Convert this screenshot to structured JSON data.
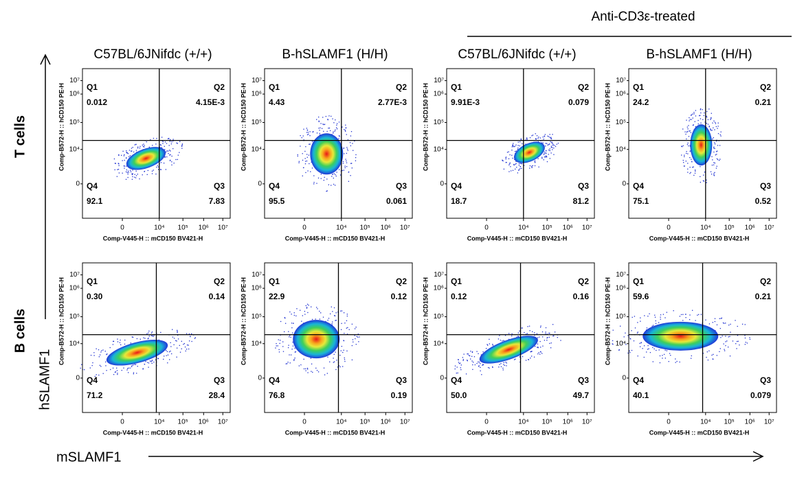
{
  "header": {
    "group_label": "Anti-CD3ε-treated"
  },
  "columns": [
    "C57BL/6JNifdc (+/+)",
    "B-hSLAMF1 (H/H)",
    "C57BL/6JNifdc (+/+)",
    "B-hSLAMF1 (H/H)"
  ],
  "rows": [
    "T cells",
    "B cells"
  ],
  "axis_titles": {
    "y": "hSLAMF1",
    "x": "mSLAMF1"
  },
  "plot_axes": {
    "x_label": "Comp-V445-H :: mCD150  BV421-H",
    "y_label": "Comp-B572-H :: hCD150 PE-H",
    "x_ticks": [
      "0",
      "10⁴",
      "10⁵",
      "10⁶",
      "10⁷"
    ],
    "y_ticks": [
      "10⁷",
      "10⁶",
      "10⁵",
      "10⁴",
      "0"
    ]
  },
  "quadrant_names": {
    "q1": "Q1",
    "q2": "Q2",
    "q3": "Q3",
    "q4": "Q4"
  },
  "panels": [
    {
      "q1": "0.012",
      "q2": "4.15E-3",
      "q3": "7.83",
      "q4": "92.1"
    },
    {
      "q1": "4.43",
      "q2": "2.77E-3",
      "q3": "0.061",
      "q4": "95.5"
    },
    {
      "q1": "9.91E-3",
      "q2": "0.079",
      "q3": "81.2",
      "q4": "18.7"
    },
    {
      "q1": "24.2",
      "q2": "0.21",
      "q3": "0.52",
      "q4": "75.1"
    },
    {
      "q1": "0.30",
      "q2": "0.14",
      "q3": "28.4",
      "q4": "71.2"
    },
    {
      "q1": "22.9",
      "q2": "0.12",
      "q3": "0.19",
      "q4": "76.8"
    },
    {
      "q1": "0.12",
      "q2": "0.16",
      "q3": "49.7",
      "q4": "50.0"
    },
    {
      "q1": "59.6",
      "q2": "0.21",
      "q3": "0.079",
      "q4": "40.1"
    }
  ]
}
